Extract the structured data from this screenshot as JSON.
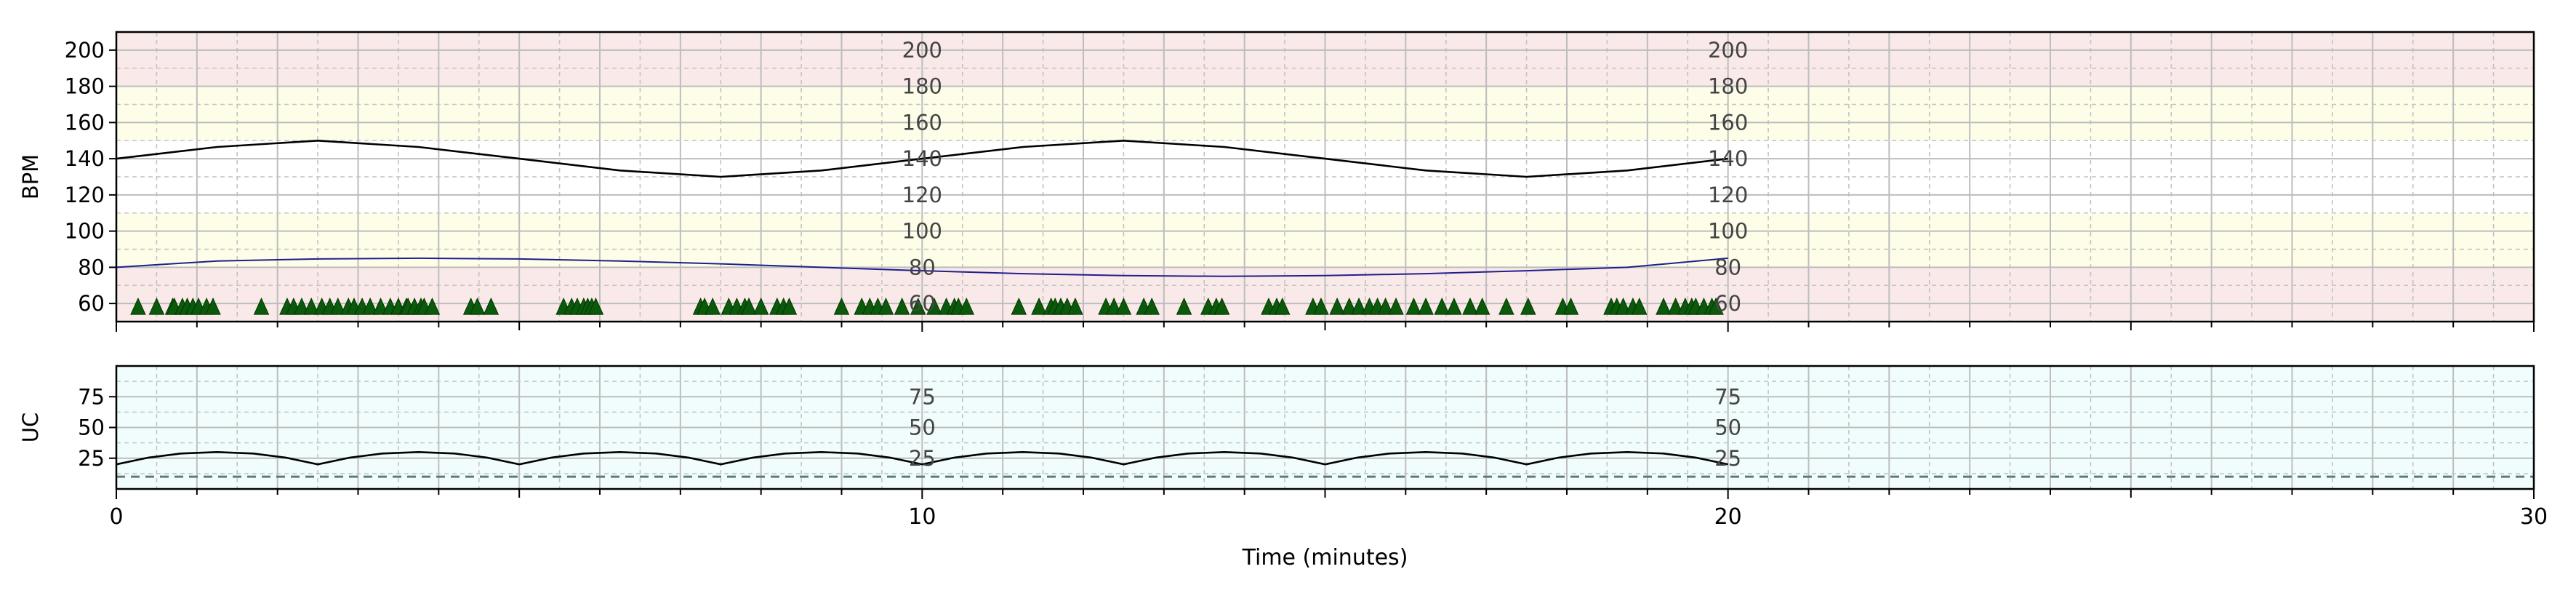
{
  "chart_data": [
    {
      "type": "line",
      "panel": "fetal-heart-rate",
      "ylabel": "BPM",
      "xlim": [
        0,
        30
      ],
      "ylim": [
        50,
        210
      ],
      "yticks": [
        60,
        80,
        100,
        120,
        140,
        160,
        180,
        200
      ],
      "minor_y_step": 10,
      "inner_labels": [
        "200",
        "180",
        "160",
        "140",
        "120",
        "100",
        "80",
        "60"
      ],
      "inner_label_x": [
        10,
        20
      ],
      "grid": true,
      "bands": [
        {
          "from": 50,
          "to": 80,
          "color": "#f9e9e8"
        },
        {
          "from": 80,
          "to": 110,
          "color": "#fdfde8"
        },
        {
          "from": 110,
          "to": 150,
          "color": "#ffffff"
        },
        {
          "from": 150,
          "to": 180,
          "color": "#fdfde8"
        },
        {
          "from": 180,
          "to": 210,
          "color": "#f9e9e8"
        }
      ],
      "series": [
        {
          "role": "fhr-trace",
          "color": "#000000",
          "x": [
            0,
            1.25,
            2.5,
            3.75,
            5,
            6.25,
            7.5,
            8.75,
            10,
            11.25,
            12.5,
            13.75,
            15,
            16.25,
            17.5,
            18.75,
            20
          ],
          "y": [
            140,
            146.5,
            150,
            146.5,
            140,
            133.5,
            130,
            133.5,
            140,
            146.5,
            150,
            146.5,
            140,
            133.5,
            130,
            133.5,
            140
          ]
        },
        {
          "role": "maternal-trace",
          "color": "#1f1f8c",
          "x": [
            0,
            1.25,
            2.5,
            3.75,
            5,
            6.25,
            7.5,
            8.75,
            10,
            11.25,
            12.5,
            13.75,
            15,
            16.25,
            17.5,
            18.75,
            20
          ],
          "y": [
            80,
            83.5,
            84.6,
            85,
            84.6,
            83.5,
            81.9,
            80,
            78.1,
            76.5,
            75.4,
            75,
            75.4,
            76.5,
            78.1,
            80,
            85
          ]
        }
      ],
      "markers": {
        "shape": "triangle",
        "color": "#0b5a0b",
        "y": 58,
        "x": [
          0.27,
          0.5,
          0.7,
          0.72,
          0.82,
          0.88,
          0.95,
          1.02,
          1.12,
          1.2,
          1.8,
          2.12,
          2.2,
          2.3,
          2.42,
          2.55,
          2.65,
          2.75,
          2.88,
          2.95,
          3.05,
          3.15,
          3.28,
          3.4,
          3.5,
          3.6,
          3.62,
          3.7,
          3.78,
          3.82,
          3.92,
          4.4,
          4.48,
          4.65,
          5.55,
          5.65,
          5.72,
          5.8,
          5.85,
          5.9,
          5.95,
          7.25,
          7.3,
          7.4,
          7.6,
          7.7,
          7.8,
          7.85,
          8.0,
          8.2,
          8.28,
          8.35,
          9.0,
          9.25,
          9.35,
          9.45,
          9.55,
          9.75,
          9.95,
          10.15,
          10.3,
          10.4,
          10.45,
          10.55,
          11.2,
          11.45,
          11.6,
          11.65,
          11.72,
          11.8,
          11.9,
          12.28,
          12.38,
          12.5,
          12.75,
          12.85,
          13.25,
          13.55,
          13.65,
          13.72,
          14.3,
          14.4,
          14.47,
          14.85,
          14.95,
          15.15,
          15.3,
          15.42,
          15.55,
          15.65,
          15.75,
          15.88,
          16.1,
          16.25,
          16.45,
          16.6,
          16.8,
          16.95,
          17.25,
          17.52,
          17.95,
          18.05,
          18.55,
          18.62,
          18.7,
          18.82,
          18.9,
          19.2,
          19.35,
          19.47,
          19.55,
          19.6,
          19.7,
          19.8,
          19.85
        ]
      }
    },
    {
      "type": "line",
      "panel": "uterine-contractions",
      "ylabel": "UC",
      "xlabel": "Time (minutes)",
      "xlim": [
        0,
        30
      ],
      "ylim": [
        0,
        100
      ],
      "xticks": [
        0,
        10,
        20,
        30
      ],
      "yticks": [
        25,
        50,
        75
      ],
      "minor_y_step": 12.5,
      "inner_labels": [
        "75",
        "50",
        "25"
      ],
      "inner_label_x": [
        10,
        20
      ],
      "grid": true,
      "background": "#f1fdfd",
      "series": [
        {
          "role": "uc-trace",
          "color": "#000000",
          "x": [
            0,
            0.4,
            0.8,
            1.25,
            1.7,
            2.1,
            2.5,
            2.9,
            3.3,
            3.75,
            4.2,
            4.6,
            5,
            5.4,
            5.8,
            6.25,
            6.7,
            7.1,
            7.5,
            7.9,
            8.3,
            8.75,
            9.2,
            9.6,
            10,
            10.4,
            10.8,
            11.25,
            11.7,
            12.1,
            12.5,
            12.9,
            13.3,
            13.75,
            14.2,
            14.6,
            15,
            15.4,
            15.8,
            16.25,
            16.7,
            17.1,
            17.5,
            17.9,
            18.3,
            18.75,
            19.2,
            19.6,
            20
          ],
          "y": [
            20,
            25.5,
            28.8,
            30,
            28.8,
            25.5,
            20,
            25.5,
            28.8,
            30,
            28.8,
            25.5,
            20,
            25.5,
            28.8,
            30,
            28.8,
            25.5,
            20,
            25.5,
            28.8,
            30,
            28.8,
            25.5,
            20,
            25.5,
            28.8,
            30,
            28.8,
            25.5,
            20,
            25.5,
            28.8,
            30,
            28.8,
            25.5,
            20,
            25.5,
            28.8,
            30,
            28.8,
            25.5,
            20,
            25.5,
            28.8,
            30,
            28.8,
            25.5,
            20
          ]
        }
      ],
      "baseline": {
        "y": 10,
        "color": "#5f7a7a",
        "style": "dashed"
      }
    }
  ]
}
